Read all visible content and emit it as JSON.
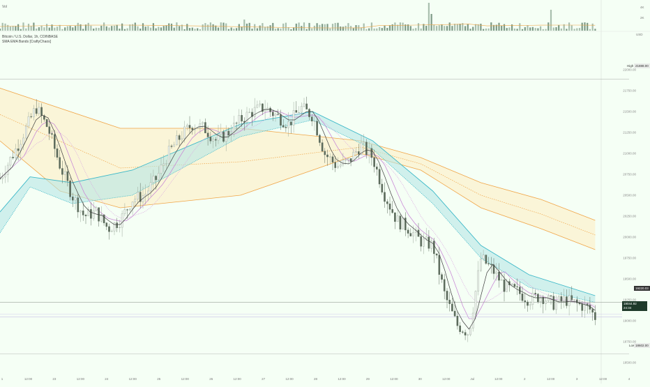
{
  "header": {
    "volume_label": "Vol",
    "symbol_line": "Bitcoin / U.S. Dollar, 1h, COINBASE",
    "indicator_line": "SMA EMA Bands [CraftyChaos]"
  },
  "price_axis": {
    "currency": "USD",
    "high_label": "High",
    "high_value": "21888.00",
    "low_label": "Low",
    "low_value": "18602.00",
    "level_value": "19220.03",
    "current_value": "19044.92",
    "countdown": "24:34"
  },
  "volume_axis": {
    "ticks": [
      "4K",
      "2K"
    ]
  },
  "chart_data": {
    "type": "candlestick",
    "symbol": "Bitcoin / U.S. Dollar",
    "interval": "1h",
    "exchange": "COINBASE",
    "ylim": [
      18500,
      22250
    ],
    "yticks": [
      18500,
      18750,
      19000,
      19250,
      19500,
      19750,
      20000,
      20250,
      20500,
      20750,
      21000,
      21250,
      21500,
      21750,
      22000
    ],
    "xtick_labels": [
      "1",
      "12:00",
      "23",
      "12:00",
      "24",
      "12:00",
      "25",
      "12:00",
      "26",
      "12:00",
      "27",
      "12:00",
      "28",
      "12:00",
      "29",
      "12:00",
      "30",
      "12:00",
      "Jul",
      "12:00",
      "2",
      "12:00",
      "3",
      "12:00",
      "4"
    ],
    "high": 21888,
    "low": 18602,
    "current": 19044.92,
    "level": 19220.03,
    "close_path": [
      [
        0,
        20700
      ],
      [
        3,
        21100
      ],
      [
        6,
        21550
      ],
      [
        8,
        21300
      ],
      [
        10,
        20850
      ],
      [
        12,
        20500
      ],
      [
        14,
        20250
      ],
      [
        16,
        20300
      ],
      [
        18,
        20100
      ],
      [
        20,
        20200
      ],
      [
        22,
        20450
      ],
      [
        24,
        20500
      ],
      [
        26,
        20700
      ],
      [
        28,
        21000
      ],
      [
        30,
        21200
      ],
      [
        32,
        21350
      ],
      [
        34,
        21300
      ],
      [
        36,
        21150
      ],
      [
        38,
        21250
      ],
      [
        40,
        21400
      ],
      [
        42,
        21500
      ],
      [
        44,
        21550
      ],
      [
        46,
        21450
      ],
      [
        48,
        21350
      ],
      [
        50,
        21550
      ],
      [
        52,
        21450
      ],
      [
        54,
        21000
      ],
      [
        56,
        20850
      ],
      [
        58,
        20900
      ],
      [
        60,
        21100
      ],
      [
        62,
        20950
      ],
      [
        64,
        20500
      ],
      [
        66,
        20200
      ],
      [
        68,
        20100
      ],
      [
        70,
        19950
      ],
      [
        72,
        19900
      ],
      [
        74,
        19300
      ],
      [
        76,
        18950
      ],
      [
        78,
        18850
      ],
      [
        80,
        19750
      ],
      [
        82,
        19600
      ],
      [
        84,
        19400
      ],
      [
        86,
        19350
      ],
      [
        88,
        19250
      ],
      [
        90,
        19300
      ],
      [
        92,
        19200
      ],
      [
        94,
        19250
      ],
      [
        96,
        19200
      ],
      [
        98,
        19150
      ],
      [
        99,
        19045
      ]
    ],
    "bands": {
      "long_upper": [
        [
          0,
          21780
        ],
        [
          20,
          21300
        ],
        [
          40,
          21300
        ],
        [
          60,
          21150
        ],
        [
          70,
          20950
        ],
        [
          80,
          20650
        ],
        [
          90,
          20450
        ],
        [
          99,
          20200
        ]
      ],
      "long_lower": [
        [
          0,
          21150
        ],
        [
          10,
          20550
        ],
        [
          20,
          20350
        ],
        [
          40,
          20500
        ],
        [
          60,
          21000
        ],
        [
          70,
          20800
        ],
        [
          80,
          20350
        ],
        [
          90,
          20100
        ],
        [
          99,
          19850
        ]
      ],
      "mid_upper": [
        [
          0,
          20300
        ],
        [
          5,
          20720
        ],
        [
          12,
          20650
        ],
        [
          22,
          20800
        ],
        [
          40,
          21350
        ],
        [
          52,
          21500
        ],
        [
          62,
          21150
        ],
        [
          72,
          20550
        ],
        [
          80,
          19900
        ],
        [
          88,
          19550
        ],
        [
          99,
          19300
        ]
      ],
      "mid_lower": [
        [
          0,
          20050
        ],
        [
          5,
          20600
        ],
        [
          12,
          20400
        ],
        [
          22,
          20500
        ],
        [
          40,
          21200
        ],
        [
          52,
          21400
        ],
        [
          62,
          21050
        ],
        [
          72,
          20400
        ],
        [
          80,
          19750
        ],
        [
          88,
          19400
        ],
        [
          99,
          19220
        ]
      ]
    }
  }
}
